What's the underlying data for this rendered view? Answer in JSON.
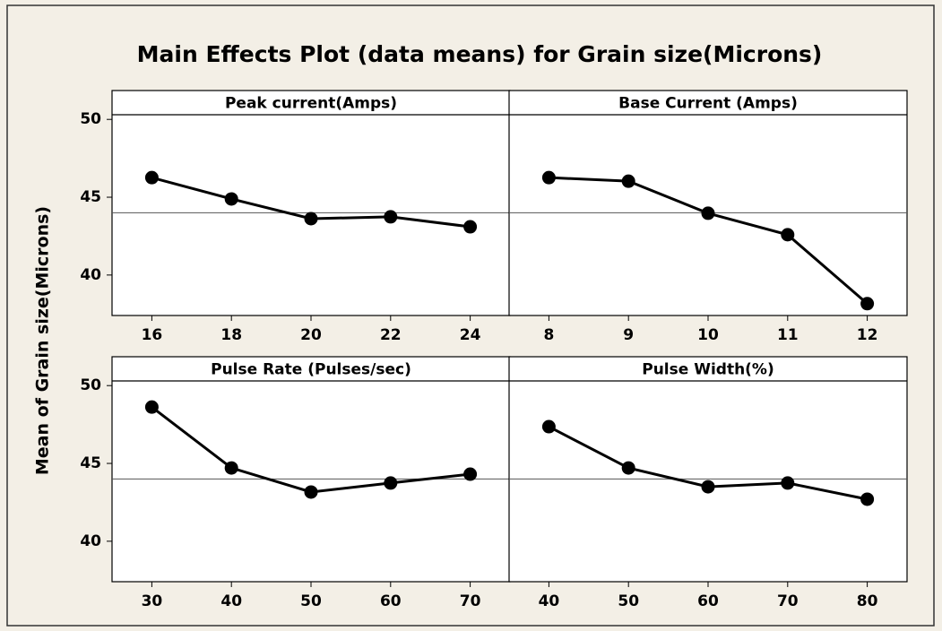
{
  "title": "Main Effects Plot (data means) for Grain size(Microns)",
  "y_label": "Mean of Grain size(Microns)",
  "chart_data": [
    {
      "type": "line",
      "title": "Peak current(Amps)",
      "x": [
        16,
        18,
        20,
        22,
        24
      ],
      "values": [
        46.26,
        44.89,
        43.62,
        43.74,
        43.1
      ],
      "xlim": [
        15,
        25
      ],
      "xticks": [
        16,
        18,
        20,
        22,
        24
      ],
      "ylim": [
        37.4,
        50.3
      ],
      "yticks": [
        40,
        45,
        50
      ],
      "mean": 44.0,
      "color": "#000000"
    },
    {
      "type": "line",
      "title": "Base Current (Amps)",
      "x": [
        8,
        9,
        10,
        11,
        12
      ],
      "values": [
        46.26,
        46.03,
        43.97,
        42.59,
        38.16
      ],
      "xlim": [
        7.5,
        12.5
      ],
      "xticks": [
        8,
        9,
        10,
        11,
        12
      ],
      "ylim": [
        37.4,
        50.3
      ],
      "mean": 44.0,
      "color": "#000000"
    },
    {
      "type": "line",
      "title": "Pulse Rate (Pulses/sec)",
      "x": [
        30,
        40,
        50,
        60,
        70
      ],
      "values": [
        48.62,
        44.71,
        43.16,
        43.74,
        44.31
      ],
      "xlim": [
        25,
        75
      ],
      "xticks": [
        30,
        40,
        50,
        60,
        70
      ],
      "ylim": [
        37.4,
        50.3
      ],
      "yticks": [
        40,
        45,
        50
      ],
      "mean": 44.0,
      "color": "#000000"
    },
    {
      "type": "line",
      "title": "Pulse Width(%)",
      "x": [
        40,
        50,
        60,
        70,
        80
      ],
      "values": [
        47.36,
        44.71,
        43.5,
        43.74,
        42.7
      ],
      "xlim": [
        35,
        85
      ],
      "xticks": [
        40,
        50,
        60,
        70,
        80
      ],
      "ylim": [
        37.4,
        50.3
      ],
      "mean": 44.0,
      "color": "#000000"
    }
  ]
}
